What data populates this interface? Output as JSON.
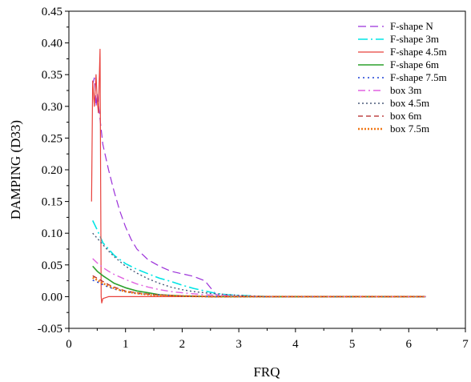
{
  "chart_data": {
    "type": "line",
    "xlabel": "FRQ",
    "ylabel": "DAMPING (D33)",
    "xlim": [
      0,
      7
    ],
    "ylim": [
      -0.05,
      0.45
    ],
    "x_ticks": [
      "0",
      "1",
      "2",
      "3",
      "4",
      "5",
      "6",
      "7"
    ],
    "y_ticks": [
      "-0.05",
      "0.00",
      "0.05",
      "0.10",
      "0.15",
      "0.20",
      "0.25",
      "0.30",
      "0.35",
      "0.40",
      "0.45"
    ],
    "grid": false,
    "legend_position": "top-right",
    "series": [
      {
        "name": "F-shape N",
        "color": "#9b30d9",
        "dash": "10,5",
        "width": 1.2,
        "points": [
          [
            0.42,
            0.335
          ],
          [
            0.45,
            0.345
          ],
          [
            0.48,
            0.3
          ],
          [
            0.5,
            0.32
          ],
          [
            0.55,
            0.28
          ],
          [
            0.6,
            0.24
          ],
          [
            0.7,
            0.2
          ],
          [
            0.8,
            0.165
          ],
          [
            0.9,
            0.135
          ],
          [
            1.0,
            0.11
          ],
          [
            1.1,
            0.09
          ],
          [
            1.2,
            0.075
          ],
          [
            1.4,
            0.058
          ],
          [
            1.6,
            0.048
          ],
          [
            1.8,
            0.04
          ],
          [
            2.0,
            0.036
          ],
          [
            2.2,
            0.032
          ],
          [
            2.4,
            0.025
          ],
          [
            2.6,
            0.003
          ],
          [
            2.7,
            0.0
          ],
          [
            3.0,
            0.0
          ],
          [
            4.0,
            0.0
          ],
          [
            5.0,
            0.0
          ],
          [
            6.3,
            0.0
          ]
        ]
      },
      {
        "name": "F-shape 3m",
        "color": "#00e5e5",
        "dash": "12,4,2,4",
        "width": 1.6,
        "points": [
          [
            0.42,
            0.12
          ],
          [
            0.5,
            0.105
          ],
          [
            0.6,
            0.085
          ],
          [
            0.7,
            0.075
          ],
          [
            0.8,
            0.065
          ],
          [
            1.0,
            0.052
          ],
          [
            1.2,
            0.043
          ],
          [
            1.4,
            0.036
          ],
          [
            1.6,
            0.029
          ],
          [
            1.8,
            0.024
          ],
          [
            2.0,
            0.018
          ],
          [
            2.2,
            0.013
          ],
          [
            2.4,
            0.009
          ],
          [
            2.6,
            0.005
          ],
          [
            2.8,
            0.003
          ],
          [
            3.0,
            0.002
          ],
          [
            3.5,
            0.0
          ],
          [
            6.3,
            0.0
          ]
        ]
      },
      {
        "name": "F-shape 4.5m",
        "color": "#e8413c",
        "dash": "",
        "width": 1.2,
        "points": [
          [
            0.4,
            0.15
          ],
          [
            0.42,
            0.34
          ],
          [
            0.45,
            0.3
          ],
          [
            0.48,
            0.35
          ],
          [
            0.5,
            0.31
          ],
          [
            0.52,
            0.29
          ],
          [
            0.55,
            0.39
          ],
          [
            0.57,
            0.0
          ],
          [
            0.58,
            -0.01
          ],
          [
            0.6,
            -0.003
          ],
          [
            0.7,
            0.0
          ],
          [
            1.0,
            0.0
          ],
          [
            2.0,
            0.0
          ],
          [
            3.0,
            0.0
          ],
          [
            6.3,
            0.0
          ]
        ]
      },
      {
        "name": "F-shape 6m",
        "color": "#2ca02c",
        "dash": "",
        "width": 1.6,
        "points": [
          [
            0.42,
            0.048
          ],
          [
            0.5,
            0.04
          ],
          [
            0.6,
            0.033
          ],
          [
            0.7,
            0.027
          ],
          [
            0.8,
            0.021
          ],
          [
            1.0,
            0.014
          ],
          [
            1.2,
            0.009
          ],
          [
            1.4,
            0.006
          ],
          [
            1.6,
            0.003
          ],
          [
            2.0,
            0.001
          ],
          [
            2.5,
            0.0
          ],
          [
            6.3,
            0.0
          ]
        ]
      },
      {
        "name": "F-shape 7.5m",
        "color": "#1a3fd6",
        "dash": "2,4",
        "width": 1.6,
        "points": [
          [
            0.42,
            0.026
          ],
          [
            0.5,
            0.023
          ],
          [
            0.6,
            0.019
          ],
          [
            0.7,
            0.015
          ],
          [
            0.8,
            0.012
          ],
          [
            1.0,
            0.008
          ],
          [
            1.2,
            0.005
          ],
          [
            1.5,
            0.003
          ],
          [
            2.0,
            0.001
          ],
          [
            2.5,
            0.0
          ],
          [
            6.3,
            0.0
          ]
        ]
      },
      {
        "name": "box 3m",
        "color": "#e060e0",
        "dash": "9,4,2,4",
        "width": 1.4,
        "points": [
          [
            0.42,
            0.06
          ],
          [
            0.5,
            0.053
          ],
          [
            0.6,
            0.046
          ],
          [
            0.7,
            0.04
          ],
          [
            0.8,
            0.035
          ],
          [
            1.0,
            0.027
          ],
          [
            1.2,
            0.02
          ],
          [
            1.4,
            0.015
          ],
          [
            1.6,
            0.011
          ],
          [
            1.8,
            0.008
          ],
          [
            2.0,
            0.006
          ],
          [
            2.4,
            0.003
          ],
          [
            3.0,
            0.001
          ],
          [
            3.5,
            0.0
          ],
          [
            6.3,
            0.0
          ]
        ]
      },
      {
        "name": "box 4.5m",
        "color": "#4a5a78",
        "dash": "2,3",
        "width": 1.4,
        "points": [
          [
            0.42,
            0.1
          ],
          [
            0.5,
            0.092
          ],
          [
            0.6,
            0.082
          ],
          [
            0.7,
            0.072
          ],
          [
            0.8,
            0.063
          ],
          [
            1.0,
            0.048
          ],
          [
            1.2,
            0.037
          ],
          [
            1.4,
            0.028
          ],
          [
            1.6,
            0.021
          ],
          [
            1.8,
            0.015
          ],
          [
            2.0,
            0.011
          ],
          [
            2.2,
            0.008
          ],
          [
            2.5,
            0.005
          ],
          [
            3.0,
            0.002
          ],
          [
            3.5,
            0.0
          ],
          [
            6.3,
            0.0
          ]
        ]
      },
      {
        "name": "box 6m",
        "color": "#b22222",
        "dash": "6,4",
        "width": 1.2,
        "points": [
          [
            0.42,
            0.033
          ],
          [
            0.5,
            0.029
          ],
          [
            0.6,
            0.024
          ],
          [
            0.7,
            0.019
          ],
          [
            0.8,
            0.015
          ],
          [
            1.0,
            0.009
          ],
          [
            1.2,
            0.006
          ],
          [
            1.5,
            0.003
          ],
          [
            2.0,
            0.001
          ],
          [
            2.5,
            0.0
          ],
          [
            6.3,
            0.0
          ]
        ]
      },
      {
        "name": "box 7.5m",
        "color": "#f07818",
        "dash": "2,2",
        "width": 2.4,
        "points": [
          [
            0.42,
            0.03
          ],
          [
            0.5,
            0.026
          ],
          [
            0.6,
            0.021
          ],
          [
            0.7,
            0.017
          ],
          [
            0.8,
            0.013
          ],
          [
            1.0,
            0.008
          ],
          [
            1.2,
            0.005
          ],
          [
            1.5,
            0.002
          ],
          [
            2.0,
            0.001
          ],
          [
            2.5,
            0.0
          ],
          [
            6.3,
            0.0
          ]
        ]
      }
    ]
  }
}
